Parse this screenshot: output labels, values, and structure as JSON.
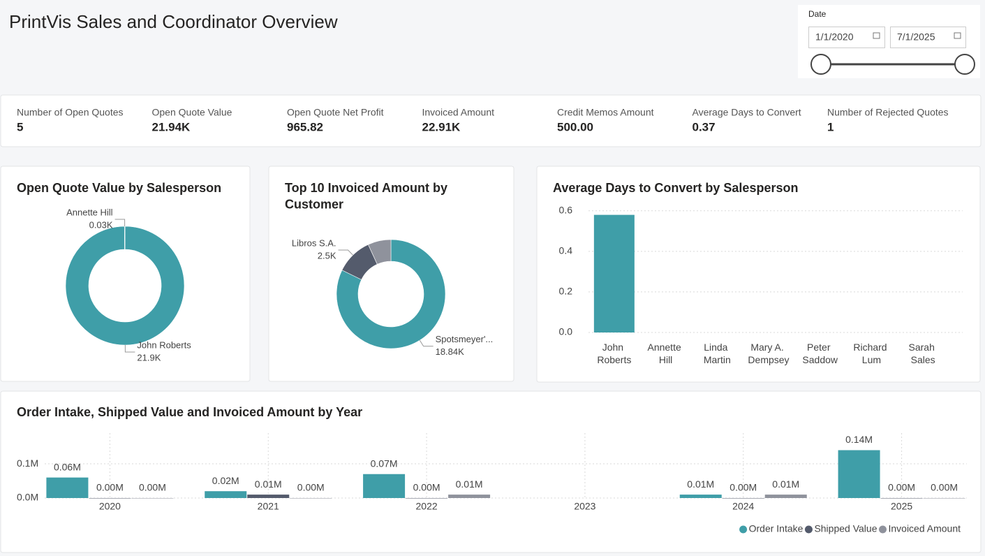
{
  "header": {
    "title": "PrintVis Sales and Coordinator Overview"
  },
  "date_filter": {
    "label": "Date",
    "start": "1/1/2020",
    "end": "7/1/2025"
  },
  "kpis": [
    {
      "label": "Number of Open Quotes",
      "value": "5"
    },
    {
      "label": "Open Quote Value",
      "value": "21.94K"
    },
    {
      "label": "Open Quote Net Profit",
      "value": "965.82"
    },
    {
      "label": "Invoiced Amount",
      "value": "22.91K"
    },
    {
      "label": "Credit Memos Amount",
      "value": "500.00"
    },
    {
      "label": "Average Days to Convert",
      "value": "0.37"
    },
    {
      "label": "Number of Rejected Quotes",
      "value": "1"
    }
  ],
  "chart_data": [
    {
      "type": "pie",
      "title": "Open Quote Value by Salesperson",
      "categories": [
        "John Roberts",
        "Annette Hill"
      ],
      "values": [
        21.9,
        0.03
      ],
      "value_labels": [
        "21.9K",
        "0.03K"
      ],
      "colors": [
        "#3f9ea8",
        "#3f9ea8"
      ]
    },
    {
      "type": "pie",
      "title": "Top 10 Invoiced Amount by Customer",
      "categories": [
        "Spotsmeyer'...",
        "Libros S.A.",
        null
      ],
      "values": [
        18.84,
        2.5,
        1.57
      ],
      "value_labels": [
        "18.84K",
        "2.5K",
        null
      ],
      "colors": [
        "#3f9ea8",
        "#545b6c",
        "#8f929c"
      ]
    },
    {
      "type": "bar",
      "title": "Average Days to Convert by Salesperson",
      "categories": [
        "John Roberts",
        "Annette Hill",
        "Linda Martin",
        "Mary A. Dempsey",
        "Peter Saddow",
        "Richard Lum",
        "Sarah Sales"
      ],
      "values": [
        0.58,
        0,
        0,
        0,
        0,
        0,
        0
      ],
      "color": "#3f9ea8",
      "ylim": [
        0,
        0.62
      ],
      "yticks": [
        {
          "value": 0,
          "label": "0.0"
        },
        0.2,
        0.4,
        0.6
      ],
      "grid": true
    },
    {
      "type": "grouped_bar",
      "title": "Order Intake, Shipped Value and Invoiced Amount by Year",
      "categories": [
        "2020",
        "2021",
        "2022",
        "2023",
        "2024",
        "2025"
      ],
      "series": [
        {
          "name": "Order Intake",
          "color": "#3f9ea8",
          "values": [
            0.06,
            0.02,
            0.07,
            null,
            0.01,
            0.14
          ],
          "value_labels": [
            "0.06M",
            "0.02M",
            "0.07M",
            null,
            "0.01M",
            "0.14M"
          ]
        },
        {
          "name": "Shipped Value",
          "color": "#545b6c",
          "values": [
            0.0,
            0.01,
            0.0,
            null,
            0.0,
            0.0
          ],
          "value_labels": [
            "0.00M",
            "0.01M",
            "0.00M",
            null,
            "0.00M",
            "0.00M"
          ]
        },
        {
          "name": "Invoiced Amount",
          "color": "#8f929c",
          "values": [
            0.0,
            0.0,
            0.01,
            null,
            0.01,
            0.0
          ],
          "value_labels": [
            "0.00M",
            "0.00M",
            "0.01M",
            null,
            "0.01M",
            "0.00M"
          ]
        }
      ],
      "ylim": [
        0,
        0.19
      ],
      "yticks": [
        {
          "value": 0,
          "label": "0.0M"
        },
        {
          "value": 0.1,
          "label": "0.1M"
        }
      ],
      "grid": true,
      "legend": "bottom-right"
    }
  ]
}
